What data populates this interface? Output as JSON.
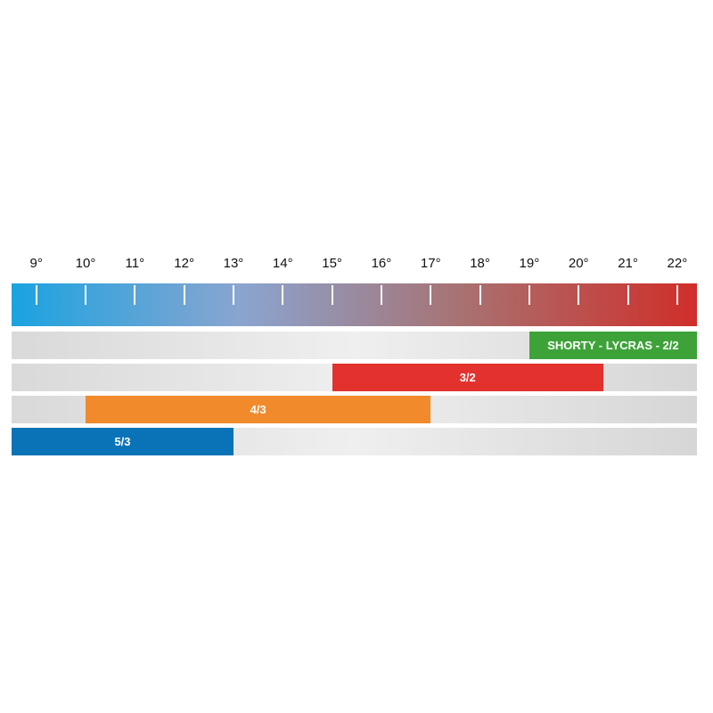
{
  "chart_data": {
    "type": "bar",
    "orientation": "horizontal-range",
    "title": "",
    "xlabel": "",
    "ylabel": "",
    "xlim": [
      8.5,
      22.4
    ],
    "ticks": [
      9,
      10,
      11,
      12,
      13,
      14,
      15,
      16,
      17,
      18,
      19,
      20,
      21,
      22
    ],
    "tick_labels": [
      "9°",
      "10°",
      "11°",
      "12°",
      "13°",
      "14°",
      "15°",
      "16°",
      "17°",
      "18°",
      "19°",
      "20°",
      "21°",
      "22°"
    ],
    "scale_gradient": [
      "#1aa3e0",
      "#8aa5d0",
      "#a9706f",
      "#d02e2a"
    ],
    "grid": false,
    "ranges": [
      {
        "label": "SHORTY - LYCRAS - 2/2",
        "start": 19,
        "end": 22.4,
        "color": "#3da339"
      },
      {
        "label": "3/2",
        "start": 15,
        "end": 20.5,
        "color": "#e3312d"
      },
      {
        "label": "4/3",
        "start": 10,
        "end": 17,
        "color": "#f18a2b"
      },
      {
        "label": "5/3",
        "start": 8.5,
        "end": 13,
        "color": "#0a73b7"
      }
    ]
  }
}
